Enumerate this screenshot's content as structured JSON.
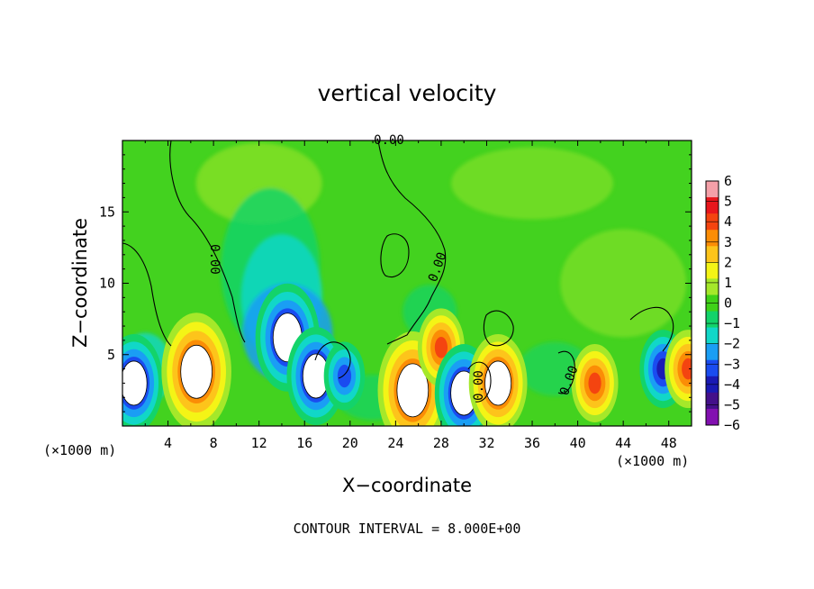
{
  "chart_data": {
    "type": "heatmap",
    "title": "vertical velocity",
    "xlabel": "X−coordinate",
    "ylabel": "Z−coordinate",
    "x_unit_label": "(×1000 m)",
    "xlim": [
      0,
      50
    ],
    "ylim": [
      0,
      20
    ],
    "x_ticks": [
      "4",
      "8",
      "12",
      "16",
      "20",
      "24",
      "28",
      "32",
      "36",
      "40",
      "44",
      "48"
    ],
    "y_ticks": [
      "5",
      "10",
      "15"
    ],
    "colorbar": {
      "ticks": [
        "6",
        "5",
        "4",
        "3",
        "2",
        "1",
        "0",
        "−1",
        "−2",
        "−3",
        "−4",
        "−5",
        "−6"
      ],
      "range": [
        -6,
        6
      ],
      "colors": [
        "#f4a0a8",
        "#e8161c",
        "#f44410",
        "#fb8d06",
        "#fdc41b",
        "#f4f416",
        "#a5e82a",
        "#3fd218",
        "#13d36a",
        "#11d7c8",
        "#1a9ef4",
        "#1a4cf0",
        "#1a1ab4",
        "#44108a",
        "#8210b0"
      ]
    },
    "contour_labels": [
      "0.00",
      "0.00",
      "0.00",
      "0.00",
      "0.00"
    ],
    "cells": [
      {
        "x": 1,
        "z": 3,
        "w": -7
      },
      {
        "x": 6.5,
        "z": 3.8,
        "w": 9
      },
      {
        "x": 14,
        "z": 7,
        "w": -4
      },
      {
        "x": 14.5,
        "z": 6.2,
        "w": -8
      },
      {
        "x": 17,
        "z": 3.5,
        "w": -7
      },
      {
        "x": 19.5,
        "z": 3.5,
        "w": -4
      },
      {
        "x": 25.5,
        "z": 2.5,
        "w": 9
      },
      {
        "x": 28,
        "z": 5.5,
        "w": 5
      },
      {
        "x": 30,
        "z": 2.3,
        "w": -7
      },
      {
        "x": 33,
        "z": 3,
        "w": 7
      },
      {
        "x": 41.5,
        "z": 3,
        "w": 5
      },
      {
        "x": 47.5,
        "z": 4,
        "w": -5
      },
      {
        "x": 49.7,
        "z": 4,
        "w": 5
      }
    ]
  },
  "footer": {
    "contour_interval": "CONTOUR INTERVAL = 8.000E+00"
  }
}
